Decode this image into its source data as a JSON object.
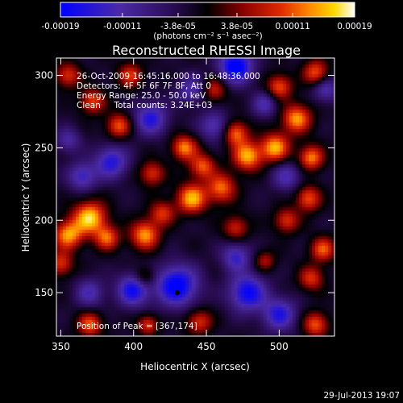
{
  "colorbar": {
    "tick_labels": [
      "-0.00019",
      "-0.00011",
      "-3.8e-05",
      "3.8e-05",
      "0.00011",
      "0.00019"
    ],
    "tick_values": [
      -0.00019,
      -0.00011,
      -3.8e-05,
      3.8e-05,
      0.00011,
      0.00019
    ],
    "range": [
      -0.00019,
      0.00019
    ],
    "unit_label": "(photons cm⁻² s⁻¹ asec⁻²)",
    "colors": [
      "#0000ff",
      "#4b2aa8",
      "#3a1466",
      "#000000",
      "#8a0000",
      "#e02a00",
      "#ff8c00",
      "#ffd700",
      "#ffffff"
    ]
  },
  "chart_data": {
    "type": "heatmap",
    "title": "Reconstructed RHESSI Image",
    "xlabel": "Heliocentric X (arcsec)",
    "ylabel": "Heliocentric Y (arcsec)",
    "xlim": [
      347,
      538
    ],
    "ylim": [
      120,
      312
    ],
    "xticks": [
      350,
      400,
      450,
      500
    ],
    "yticks": [
      150,
      200,
      250,
      300
    ],
    "annotations": [
      "26-Oct-2009 16:45:16.000 to 16:48:36.000",
      "Detectors: 4F 5F 6F 7F 8F, Att 0",
      "Energy Range: 25.0 - 50.0 keV",
      "Clean     Total counts: 3.24E+03"
    ],
    "peak_label": "Position of Peak = [367,174]",
    "marker": [
      430,
      150
    ],
    "field": {
      "peaks": [
        [
          370,
          202,
          8,
          1.0
        ],
        [
          355,
          190,
          7,
          0.85
        ],
        [
          382,
          188,
          6,
          0.7
        ],
        [
          408,
          190,
          7,
          0.85
        ],
        [
          420,
          205,
          6,
          0.6
        ],
        [
          440,
          215,
          7,
          0.9
        ],
        [
          460,
          222,
          7,
          0.75
        ],
        [
          447,
          237,
          6,
          0.7
        ],
        [
          435,
          250,
          6,
          0.8
        ],
        [
          478,
          244,
          7,
          0.9
        ],
        [
          470,
          260,
          6,
          0.75
        ],
        [
          497,
          250,
          7,
          0.9
        ],
        [
          512,
          270,
          7,
          0.85
        ],
        [
          522,
          243,
          6,
          0.8
        ],
        [
          500,
          292,
          6,
          0.7
        ],
        [
          525,
          302,
          6,
          0.7
        ],
        [
          390,
          265,
          6,
          0.7
        ],
        [
          372,
          282,
          6,
          0.65
        ],
        [
          398,
          300,
          6,
          0.6
        ],
        [
          355,
          300,
          6,
          0.6
        ],
        [
          455,
          290,
          6,
          0.55
        ],
        [
          520,
          215,
          6,
          0.7
        ],
        [
          505,
          200,
          6,
          0.6
        ],
        [
          530,
          180,
          6,
          0.7
        ],
        [
          522,
          160,
          6,
          0.6
        ],
        [
          470,
          195,
          6,
          0.55
        ],
        [
          413,
          232,
          6,
          0.6
        ],
        [
          350,
          170,
          6,
          0.6
        ],
        [
          445,
          130,
          6,
          0.6
        ],
        [
          370,
          128,
          6,
          0.7
        ],
        [
          410,
          128,
          5,
          0.6
        ],
        [
          525,
          128,
          6,
          0.7
        ],
        [
          490,
          172,
          5,
          0.45
        ],
        [
          408,
          161,
          5,
          0.45
        ]
      ],
      "troughs": [
        [
          470,
          306,
          8,
          -1.0
        ],
        [
          430,
          155,
          10,
          -0.95
        ],
        [
          478,
          150,
          9,
          -0.85
        ],
        [
          400,
          152,
          8,
          -0.8
        ],
        [
          500,
          135,
          8,
          -0.7
        ],
        [
          385,
          240,
          8,
          -0.7
        ],
        [
          412,
          270,
          8,
          -0.7
        ],
        [
          365,
          230,
          7,
          -0.6
        ],
        [
          470,
          175,
          7,
          -0.6
        ],
        [
          455,
          265,
          7,
          -0.55
        ],
        [
          505,
          230,
          7,
          -0.5
        ],
        [
          370,
          150,
          7,
          -0.5
        ],
        [
          440,
          290,
          7,
          -0.5
        ],
        [
          532,
          290,
          6,
          -0.5
        ],
        [
          355,
          255,
          6,
          -0.45
        ],
        [
          490,
          280,
          6,
          -0.5
        ]
      ]
    }
  },
  "footer": {
    "timestamp": "29-Jul-2013 19:07"
  }
}
